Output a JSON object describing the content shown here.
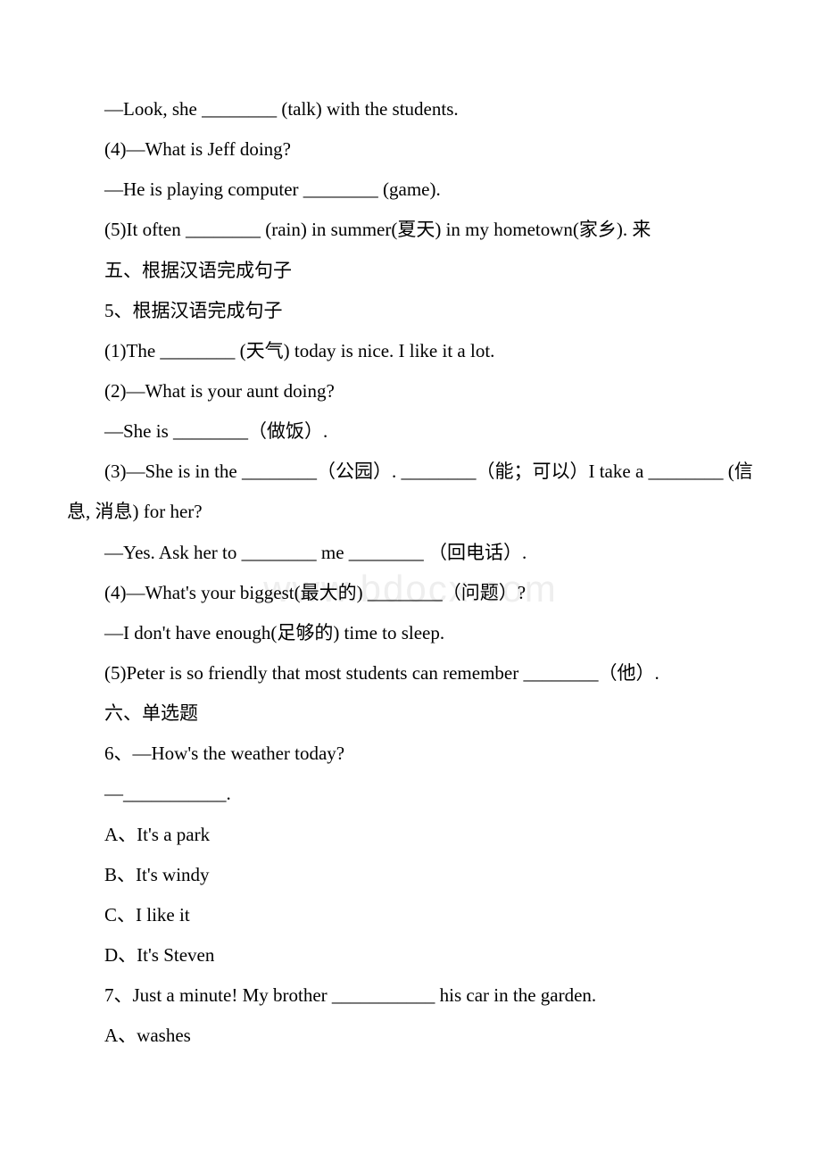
{
  "watermark": "www.bdocx.com",
  "lines": {
    "l1": "—Look, she ________ (talk) with the students.",
    "l2": "(4)—What is Jeff doing?",
    "l3": "—He is playing computer ________ (game).",
    "l4_before": "(5)It often ________ (rain) in summer(夏天) in my hometown(家乡). 来",
    "l5": "五、根据汉语完成句子",
    "l6": "5、根据汉语完成句子",
    "l7": "(1)The ________ (天气) today is nice. I like it a lot.",
    "l8": "(2)—What is your aunt doing?",
    "l9": "—She is ________（做饭）.",
    "l10_a": "(3)—She is in the ________（公园）. ________（能；可以）I take a ________ (信息, 消息) for her?",
    "l11": "—Yes. Ask her to ________ me ________ （回电话）.",
    "l12": "(4)—What's your biggest(最大的) ________（问题）?",
    "l13": "—I don't have enough(足够的) time to sleep.",
    "l14": "(5)Peter is so friendly that most students can remember ________（他）.",
    "l15": "六、单选题",
    "l16": "6、—How's the weather today?",
    "l17": "—___________.",
    "l18": "A、It's a park",
    "l19": "B、It's windy",
    "l20": "C、I like it",
    "l21": "D、It's Steven",
    "l22": "7、Just a minute! My brother ___________ his car in the garden.",
    "l23": "A、washes"
  }
}
